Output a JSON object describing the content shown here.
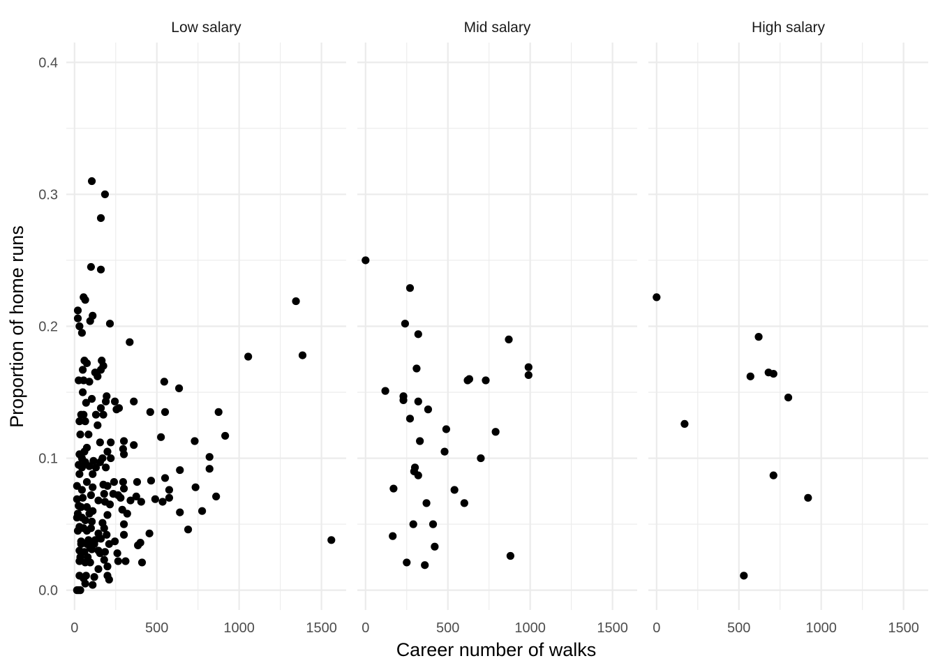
{
  "chart_data": {
    "type": "scatter",
    "xlabel": "Career number of walks",
    "ylabel": "Proportion of home runs",
    "xlim": [
      -50,
      1650
    ],
    "ylim": [
      -0.015,
      0.415
    ],
    "x_ticks": [
      0,
      500,
      1000,
      1500
    ],
    "x_tick_labels": [
      "0",
      "500",
      "1000",
      "1500"
    ],
    "y_ticks": [
      0.0,
      0.1,
      0.2,
      0.3,
      0.4
    ],
    "y_tick_labels": [
      "0.0",
      "0.1",
      "0.2",
      "0.3",
      "0.4"
    ],
    "grid": true,
    "point_color": "#000000",
    "panels": [
      {
        "title": "Low salary",
        "points": [
          [
            105,
            0.31
          ],
          [
            185,
            0.3
          ],
          [
            160,
            0.282
          ],
          [
            100,
            0.245
          ],
          [
            160,
            0.243
          ],
          [
            55,
            0.222
          ],
          [
            65,
            0.22
          ],
          [
            20,
            0.212
          ],
          [
            110,
            0.208
          ],
          [
            20,
            0.206
          ],
          [
            30,
            0.2
          ],
          [
            95,
            0.204
          ],
          [
            215,
            0.202
          ],
          [
            45,
            0.195
          ],
          [
            335,
            0.188
          ],
          [
            1345,
            0.219
          ],
          [
            1055,
            0.177
          ],
          [
            1385,
            0.178
          ],
          [
            165,
            0.174
          ],
          [
            60,
            0.174
          ],
          [
            75,
            0.172
          ],
          [
            175,
            0.17
          ],
          [
            50,
            0.167
          ],
          [
            160,
            0.167
          ],
          [
            125,
            0.165
          ],
          [
            140,
            0.162
          ],
          [
            25,
            0.159
          ],
          [
            55,
            0.159
          ],
          [
            90,
            0.158
          ],
          [
            545,
            0.158
          ],
          [
            635,
            0.153
          ],
          [
            50,
            0.15
          ],
          [
            195,
            0.147
          ],
          [
            105,
            0.145
          ],
          [
            190,
            0.143
          ],
          [
            245,
            0.143
          ],
          [
            360,
            0.143
          ],
          [
            70,
            0.142
          ],
          [
            255,
            0.137
          ],
          [
            460,
            0.135
          ],
          [
            550,
            0.135
          ],
          [
            875,
            0.135
          ],
          [
            270,
            0.138
          ],
          [
            160,
            0.138
          ],
          [
            40,
            0.133
          ],
          [
            55,
            0.133
          ],
          [
            130,
            0.133
          ],
          [
            175,
            0.133
          ],
          [
            30,
            0.128
          ],
          [
            65,
            0.128
          ],
          [
            140,
            0.125
          ],
          [
            85,
            0.118
          ],
          [
            35,
            0.118
          ],
          [
            525,
            0.116
          ],
          [
            915,
            0.117
          ],
          [
            300,
            0.113
          ],
          [
            730,
            0.113
          ],
          [
            360,
            0.11
          ],
          [
            220,
            0.112
          ],
          [
            155,
            0.112
          ],
          [
            295,
            0.107
          ],
          [
            75,
            0.108
          ],
          [
            200,
            0.105
          ],
          [
            60,
            0.105
          ],
          [
            30,
            0.103
          ],
          [
            45,
            0.1
          ],
          [
            170,
            0.1
          ],
          [
            220,
            0.1
          ],
          [
            300,
            0.103
          ],
          [
            65,
            0.097
          ],
          [
            115,
            0.098
          ],
          [
            155,
            0.097
          ],
          [
            25,
            0.095
          ],
          [
            45,
            0.093
          ],
          [
            90,
            0.094
          ],
          [
            130,
            0.093
          ],
          [
            190,
            0.093
          ],
          [
            640,
            0.091
          ],
          [
            820,
            0.092
          ],
          [
            820,
            0.101
          ],
          [
            30,
            0.088
          ],
          [
            110,
            0.088
          ],
          [
            75,
            0.082
          ],
          [
            175,
            0.08
          ],
          [
            240,
            0.082
          ],
          [
            295,
            0.082
          ],
          [
            380,
            0.082
          ],
          [
            465,
            0.083
          ],
          [
            550,
            0.085
          ],
          [
            15,
            0.079
          ],
          [
            45,
            0.076
          ],
          [
            110,
            0.078
          ],
          [
            200,
            0.079
          ],
          [
            235,
            0.073
          ],
          [
            265,
            0.072
          ],
          [
            300,
            0.077
          ],
          [
            575,
            0.076
          ],
          [
            735,
            0.078
          ],
          [
            50,
            0.07
          ],
          [
            100,
            0.072
          ],
          [
            180,
            0.073
          ],
          [
            15,
            0.069
          ],
          [
            145,
            0.068
          ],
          [
            185,
            0.067
          ],
          [
            280,
            0.07
          ],
          [
            340,
            0.068
          ],
          [
            375,
            0.071
          ],
          [
            405,
            0.067
          ],
          [
            490,
            0.069
          ],
          [
            535,
            0.067
          ],
          [
            575,
            0.07
          ],
          [
            860,
            0.071
          ],
          [
            25,
            0.064
          ],
          [
            40,
            0.063
          ],
          [
            75,
            0.063
          ],
          [
            110,
            0.06
          ],
          [
            215,
            0.065
          ],
          [
            20,
            0.058
          ],
          [
            90,
            0.058
          ],
          [
            200,
            0.057
          ],
          [
            290,
            0.061
          ],
          [
            320,
            0.058
          ],
          [
            640,
            0.059
          ],
          [
            775,
            0.06
          ],
          [
            15,
            0.055
          ],
          [
            45,
            0.055
          ],
          [
            65,
            0.053
          ],
          [
            105,
            0.052
          ],
          [
            170,
            0.051
          ],
          [
            30,
            0.048
          ],
          [
            55,
            0.047
          ],
          [
            100,
            0.047
          ],
          [
            180,
            0.047
          ],
          [
            300,
            0.05
          ],
          [
            20,
            0.045
          ],
          [
            75,
            0.045
          ],
          [
            145,
            0.043
          ],
          [
            195,
            0.042
          ],
          [
            300,
            0.042
          ],
          [
            455,
            0.043
          ],
          [
            690,
            0.046
          ],
          [
            40,
            0.037
          ],
          [
            85,
            0.038
          ],
          [
            125,
            0.038
          ],
          [
            160,
            0.039
          ],
          [
            245,
            0.037
          ],
          [
            40,
            0.035
          ],
          [
            75,
            0.035
          ],
          [
            95,
            0.032
          ],
          [
            120,
            0.035
          ],
          [
            210,
            0.035
          ],
          [
            385,
            0.034
          ],
          [
            400,
            0.036
          ],
          [
            1560,
            0.038
          ],
          [
            30,
            0.03
          ],
          [
            60,
            0.029
          ],
          [
            105,
            0.031
          ],
          [
            145,
            0.03
          ],
          [
            185,
            0.029
          ],
          [
            35,
            0.025
          ],
          [
            80,
            0.025
          ],
          [
            155,
            0.028
          ],
          [
            260,
            0.028
          ],
          [
            30,
            0.022
          ],
          [
            65,
            0.021
          ],
          [
            95,
            0.021
          ],
          [
            180,
            0.023
          ],
          [
            265,
            0.022
          ],
          [
            310,
            0.022
          ],
          [
            410,
            0.021
          ],
          [
            145,
            0.016
          ],
          [
            200,
            0.018
          ],
          [
            30,
            0.011
          ],
          [
            55,
            0.009
          ],
          [
            70,
            0.011
          ],
          [
            120,
            0.01
          ],
          [
            200,
            0.011
          ],
          [
            65,
            0.005
          ],
          [
            110,
            0.004
          ],
          [
            210,
            0.008
          ],
          [
            15,
            0.0
          ],
          [
            25,
            0.0
          ],
          [
            35,
            0.0
          ]
        ]
      },
      {
        "title": "Mid salary",
        "points": [
          [
            0,
            0.25
          ],
          [
            270,
            0.229
          ],
          [
            240,
            0.202
          ],
          [
            320,
            0.194
          ],
          [
            870,
            0.19
          ],
          [
            310,
            0.168
          ],
          [
            990,
            0.169
          ],
          [
            990,
            0.163
          ],
          [
            120,
            0.151
          ],
          [
            230,
            0.147
          ],
          [
            230,
            0.144
          ],
          [
            320,
            0.143
          ],
          [
            630,
            0.16
          ],
          [
            620,
            0.159
          ],
          [
            730,
            0.159
          ],
          [
            380,
            0.137
          ],
          [
            270,
            0.13
          ],
          [
            490,
            0.122
          ],
          [
            790,
            0.12
          ],
          [
            330,
            0.113
          ],
          [
            480,
            0.105
          ],
          [
            700,
            0.1
          ],
          [
            300,
            0.093
          ],
          [
            295,
            0.09
          ],
          [
            320,
            0.087
          ],
          [
            170,
            0.077
          ],
          [
            540,
            0.076
          ],
          [
            370,
            0.066
          ],
          [
            600,
            0.066
          ],
          [
            290,
            0.05
          ],
          [
            410,
            0.05
          ],
          [
            165,
            0.041
          ],
          [
            420,
            0.033
          ],
          [
            880,
            0.026
          ],
          [
            250,
            0.021
          ],
          [
            360,
            0.019
          ]
        ]
      },
      {
        "title": "High salary",
        "points": [
          [
            0,
            0.222
          ],
          [
            620,
            0.192
          ],
          [
            570,
            0.162
          ],
          [
            680,
            0.165
          ],
          [
            710,
            0.164
          ],
          [
            170,
            0.126
          ],
          [
            800,
            0.146
          ],
          [
            710,
            0.087
          ],
          [
            920,
            0.07
          ],
          [
            530,
            0.011
          ]
        ]
      }
    ]
  }
}
